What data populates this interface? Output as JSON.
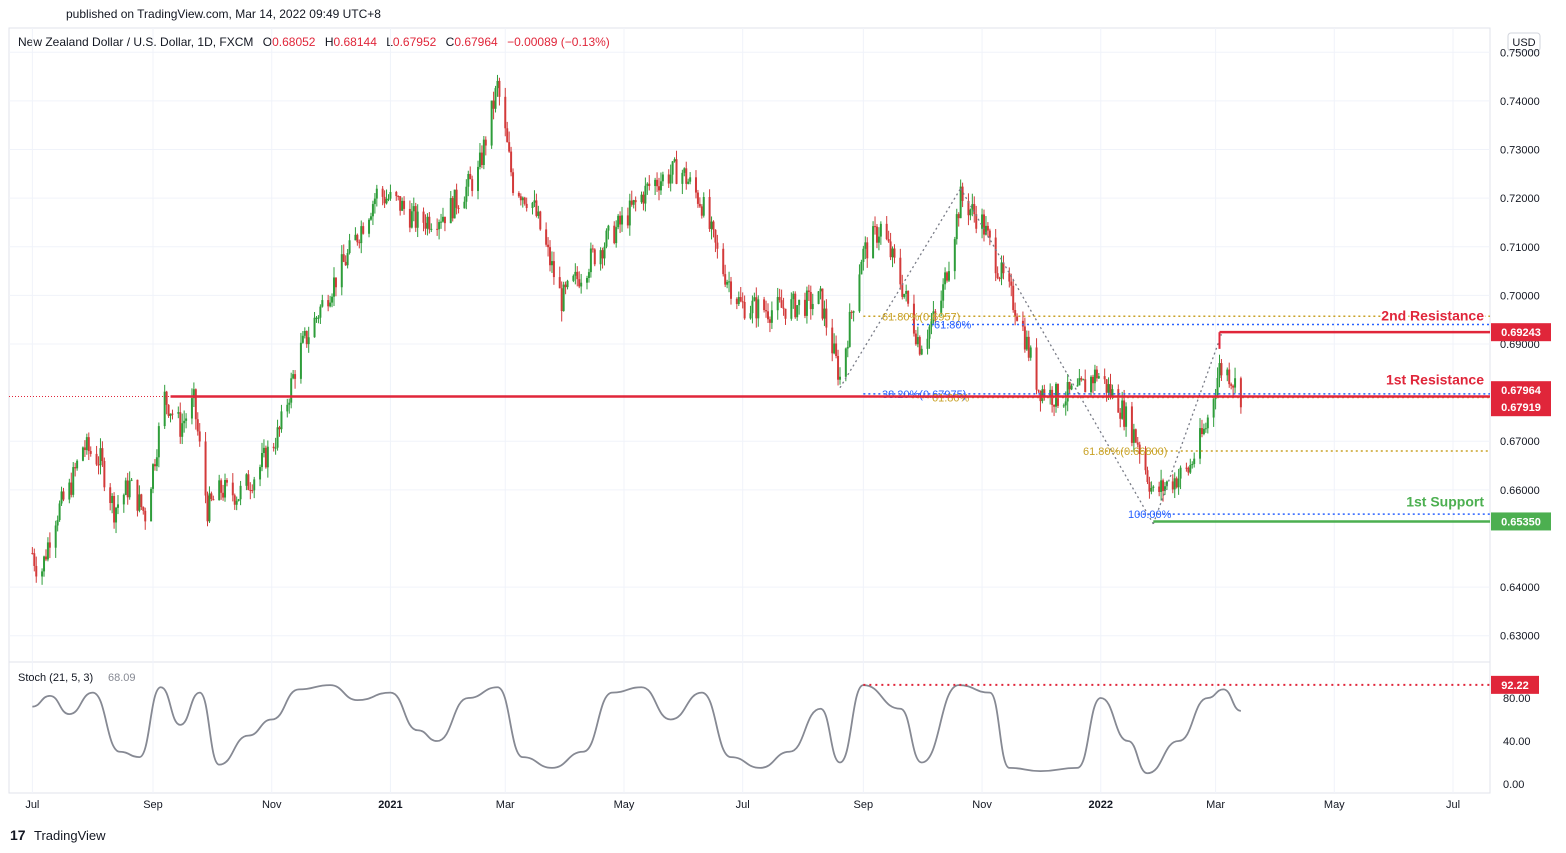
{
  "header": {
    "published": "published on TradingView.com, Mar 14, 2022 09:49 UTC+8",
    "symbol": "New Zealand Dollar / U.S. Dollar, 1D, FXCM",
    "open_label": "O",
    "open": "0.68052",
    "high_label": "H",
    "high": "0.68144",
    "low_label": "L",
    "low": "0.67952",
    "close_label": "C",
    "close": "0.67964",
    "change": "−0.00089 (−0.13%)"
  },
  "currency_button": "USD",
  "footer": {
    "brand": "TradingView"
  },
  "colors": {
    "up": "#26a69a",
    "down": "#ef5350",
    "candle_up": "#2e9d3a",
    "candle_down": "#d33a3a",
    "resistance": "#e0263a",
    "support": "#4caf50",
    "fib_gold": "#c9a227",
    "fib_blue": "#2962ff",
    "stoch": "#868993",
    "axis_text": "#131722",
    "grid": "#f0f3fa"
  },
  "chart_data": {
    "type": "candlestick",
    "symbol": "NZDUSD",
    "timeframe": "1D",
    "ylim": [
      0.625,
      0.755
    ],
    "y_ticks": [
      "0.75000",
      "0.74000",
      "0.73000",
      "0.72000",
      "0.71000",
      "0.70000",
      "0.69000",
      "0.67000",
      "0.66000",
      "0.64000",
      "0.63000"
    ],
    "x_ticks": [
      "Jul",
      "Sep",
      "Nov",
      "2021",
      "Mar",
      "May",
      "Jul",
      "Sep",
      "Nov",
      "2022",
      "Mar",
      "May",
      "Jul"
    ],
    "price_path": [
      [
        "2020-07-01",
        0.647
      ],
      [
        "2020-07-05",
        0.642
      ],
      [
        "2020-07-12",
        0.654
      ],
      [
        "2020-07-20",
        0.66
      ],
      [
        "2020-07-27",
        0.669
      ],
      [
        "2020-08-05",
        0.666
      ],
      [
        "2020-08-12",
        0.656
      ],
      [
        "2020-08-20",
        0.661
      ],
      [
        "2020-08-28",
        0.655
      ],
      [
        "2020-09-07",
        0.679
      ],
      [
        "2020-09-15",
        0.673
      ],
      [
        "2020-09-22",
        0.678
      ],
      [
        "2020-09-29",
        0.656
      ],
      [
        "2020-10-06",
        0.66
      ],
      [
        "2020-10-15",
        0.659
      ],
      [
        "2020-10-25",
        0.664
      ],
      [
        "2020-11-05",
        0.672
      ],
      [
        "2020-11-15",
        0.688
      ],
      [
        "2020-11-28",
        0.699
      ],
      [
        "2020-12-10",
        0.708
      ],
      [
        "2020-12-25",
        0.721
      ],
      [
        "2021-01-05",
        0.719
      ],
      [
        "2021-01-15",
        0.715
      ],
      [
        "2021-01-30",
        0.717
      ],
      [
        "2021-02-15",
        0.725
      ],
      [
        "2021-02-25",
        0.743
      ],
      [
        "2021-03-05",
        0.723
      ],
      [
        "2021-03-15",
        0.719
      ],
      [
        "2021-03-30",
        0.699
      ],
      [
        "2021-04-15",
        0.708
      ],
      [
        "2021-04-30",
        0.715
      ],
      [
        "2021-05-15",
        0.723
      ],
      [
        "2021-05-30",
        0.726
      ],
      [
        "2021-06-10",
        0.719
      ],
      [
        "2021-06-20",
        0.706
      ],
      [
        "2021-06-30",
        0.698
      ],
      [
        "2021-07-15",
        0.697
      ],
      [
        "2021-07-30",
        0.698
      ],
      [
        "2021-08-10",
        0.699
      ],
      [
        "2021-08-20",
        0.683
      ],
      [
        "2021-08-31",
        0.708
      ],
      [
        "2021-09-10",
        0.714
      ],
      [
        "2021-09-20",
        0.703
      ],
      [
        "2021-09-30",
        0.69
      ],
      [
        "2021-10-10",
        0.697
      ],
      [
        "2021-10-21",
        0.72
      ],
      [
        "2021-11-01",
        0.715
      ],
      [
        "2021-11-10",
        0.705
      ],
      [
        "2021-11-20",
        0.696
      ],
      [
        "2021-11-30",
        0.681
      ],
      [
        "2021-12-10",
        0.679
      ],
      [
        "2021-12-20",
        0.68
      ],
      [
        "2021-12-30",
        0.684
      ],
      [
        "2022-01-10",
        0.678
      ],
      [
        "2022-01-20",
        0.67
      ],
      [
        "2022-01-28",
        0.659
      ],
      [
        "2022-02-07",
        0.662
      ],
      [
        "2022-02-15",
        0.664
      ],
      [
        "2022-02-24",
        0.673
      ],
      [
        "2022-03-03",
        0.685
      ],
      [
        "2022-03-08",
        0.684
      ],
      [
        "2022-03-14",
        0.6796
      ]
    ],
    "levels": [
      {
        "label": "2nd Resistance",
        "value": 0.69243
      },
      {
        "label": "1st Resistance",
        "value": 0.67919
      },
      {
        "label": "1st Support",
        "value": 0.6535
      }
    ],
    "fibonacci": [
      {
        "label": "61.80%(0.6957)",
        "value": 0.6957
      },
      {
        "label": "61.80%(0.66800)",
        "value": 0.668
      },
      {
        "label": "38.20%(0.67975)",
        "value": 0.67975
      },
      {
        "label": "100.00%",
        "value": 0.655
      },
      {
        "label": "61.80%",
        "value": 0.679
      },
      {
        "label": "61.80%",
        "value": 0.694
      }
    ],
    "price_labels": {
      "r2": "0.69243",
      "last": "0.67964",
      "r1": "0.67919",
      "s1": "0.65350"
    },
    "stochastic": {
      "title": "Stoch (21, 5, 3)",
      "value": "68.09",
      "ylim": [
        0,
        100
      ],
      "y_ticks": [
        "80.00",
        "40.00",
        "0.00"
      ],
      "level_label": "92.22",
      "level": 92.22,
      "path": [
        [
          "2020-07-01",
          72
        ],
        [
          "2020-07-10",
          82
        ],
        [
          "2020-07-20",
          65
        ],
        [
          "2020-08-01",
          85
        ],
        [
          "2020-08-15",
          30
        ],
        [
          "2020-08-25",
          25
        ],
        [
          "2020-09-05",
          90
        ],
        [
          "2020-09-15",
          55
        ],
        [
          "2020-09-25",
          85
        ],
        [
          "2020-10-05",
          18
        ],
        [
          "2020-10-20",
          45
        ],
        [
          "2020-11-01",
          60
        ],
        [
          "2020-11-15",
          88
        ],
        [
          "2020-12-01",
          92
        ],
        [
          "2020-12-15",
          78
        ],
        [
          "2021-01-01",
          85
        ],
        [
          "2021-01-15",
          50
        ],
        [
          "2021-01-25",
          40
        ],
        [
          "2021-02-10",
          80
        ],
        [
          "2021-02-25",
          90
        ],
        [
          "2021-03-10",
          25
        ],
        [
          "2021-03-25",
          15
        ],
        [
          "2021-04-10",
          30
        ],
        [
          "2021-04-25",
          85
        ],
        [
          "2021-05-10",
          90
        ],
        [
          "2021-05-25",
          60
        ],
        [
          "2021-06-10",
          85
        ],
        [
          "2021-06-25",
          25
        ],
        [
          "2021-07-10",
          15
        ],
        [
          "2021-07-25",
          30
        ],
        [
          "2021-08-10",
          70
        ],
        [
          "2021-08-20",
          20
        ],
        [
          "2021-09-01",
          92
        ],
        [
          "2021-09-20",
          70
        ],
        [
          "2021-10-01",
          20
        ],
        [
          "2021-10-20",
          92
        ],
        [
          "2021-11-05",
          85
        ],
        [
          "2021-11-15",
          15
        ],
        [
          "2021-12-01",
          12
        ],
        [
          "2021-12-20",
          15
        ],
        [
          "2022-01-01",
          80
        ],
        [
          "2022-01-15",
          40
        ],
        [
          "2022-01-25",
          10
        ],
        [
          "2022-02-10",
          40
        ],
        [
          "2022-02-25",
          80
        ],
        [
          "2022-03-05",
          88
        ],
        [
          "2022-03-14",
          68
        ]
      ]
    }
  }
}
